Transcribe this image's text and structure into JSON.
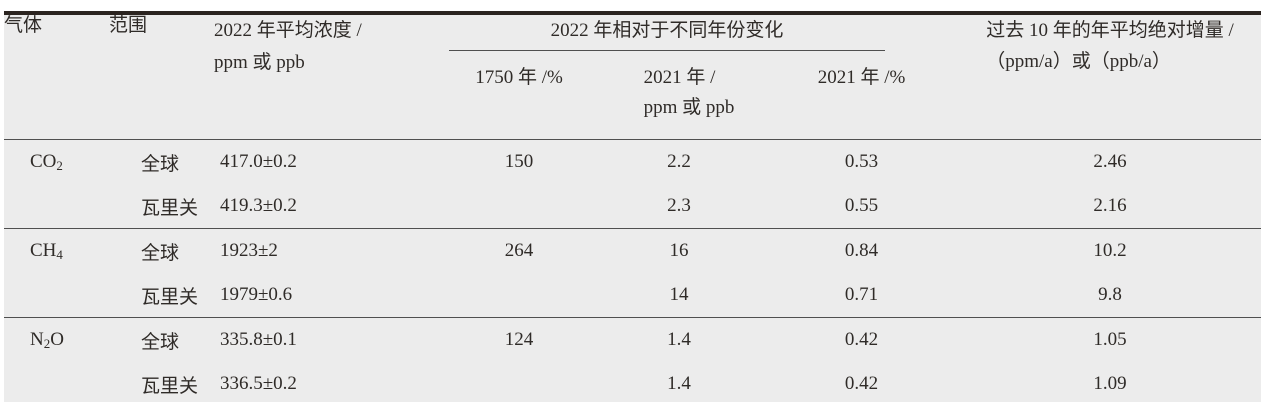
{
  "colors": {
    "table_background": "#ececec",
    "page_background": "#ffffff",
    "heavy_rule": "#2b2420",
    "thin_rule": "#4f4f4f",
    "text": "#2f2b28"
  },
  "table": {
    "header": {
      "gas": "气体",
      "scope": "范围",
      "conc2022_line1": "2022 年平均浓度 /",
      "conc2022_line2": "ppm 或 ppb",
      "change_spanner": "2022 年相对于不同年份变化",
      "sub_1750": "1750 年 /%",
      "sub_2021_line1": "2021 年 /",
      "sub_2021_line2": "ppm 或 ppb",
      "sub_2021_pct": "2021 年 /%",
      "increment_line1": "过去 10 年的年平均绝对增量 /",
      "increment_line2": "（ppm/a）或（ppb/a）"
    },
    "rows": [
      {
        "gas_base": "CO",
        "gas_sub": "2",
        "gas_tail": "",
        "scope": "全球",
        "conc": "417.0±0.2",
        "vs1750": "150",
        "vs2021": "2.2",
        "vs2021_pct": "0.53",
        "increment": "2.46",
        "block_start": true
      },
      {
        "gas_base": "",
        "gas_sub": "",
        "gas_tail": "",
        "scope": "瓦里关",
        "conc": "419.3±0.2",
        "vs1750": "",
        "vs2021": "2.3",
        "vs2021_pct": "0.55",
        "increment": "2.16",
        "block_start": false
      },
      {
        "gas_base": "CH",
        "gas_sub": "4",
        "gas_tail": "",
        "scope": "全球",
        "conc": "1923±2",
        "vs1750": "264",
        "vs2021": "16",
        "vs2021_pct": "0.84",
        "increment": "10.2",
        "block_start": true
      },
      {
        "gas_base": "",
        "gas_sub": "",
        "gas_tail": "",
        "scope": "瓦里关",
        "conc": "1979±0.6",
        "vs1750": "",
        "vs2021": "14",
        "vs2021_pct": "0.71",
        "increment": "9.8",
        "block_start": false
      },
      {
        "gas_base": "N",
        "gas_sub": "2",
        "gas_tail": "O",
        "scope": "全球",
        "conc": "335.8±0.1",
        "vs1750": "124",
        "vs2021": "1.4",
        "vs2021_pct": "0.42",
        "increment": "1.05",
        "block_start": true
      },
      {
        "gas_base": "",
        "gas_sub": "",
        "gas_tail": "",
        "scope": "瓦里关",
        "conc": "336.5±0.2",
        "vs1750": "",
        "vs2021": "1.4",
        "vs2021_pct": "0.42",
        "increment": "1.09",
        "block_start": false
      }
    ]
  }
}
